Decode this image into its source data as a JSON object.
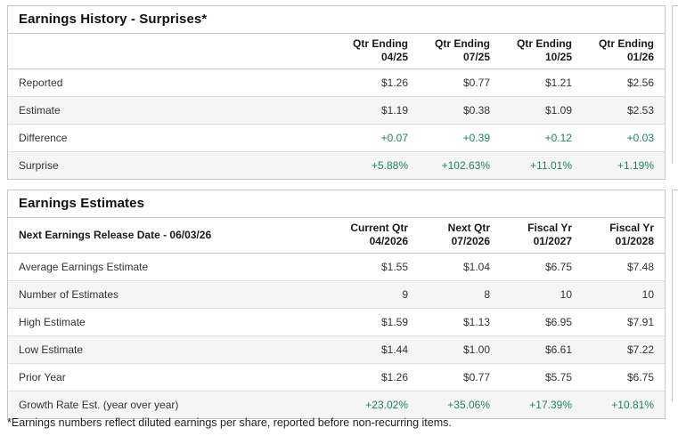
{
  "page": {
    "footnote": "*Earnings numbers reflect diluted earnings per share, reported before non-recurring items."
  },
  "colors": {
    "positive_text": "#1b8265",
    "stripe_background": "#f5f5f5",
    "panel_border": "#c6c6c6"
  },
  "history": {
    "title": "Earnings History - Surprises*",
    "columns": [
      {
        "line1": "Qtr Ending",
        "line2": "04/25"
      },
      {
        "line1": "Qtr Ending",
        "line2": "07/25"
      },
      {
        "line1": "Qtr Ending",
        "line2": "10/25"
      },
      {
        "line1": "Qtr Ending",
        "line2": "01/26"
      }
    ],
    "rows": [
      {
        "label": "Reported",
        "values": [
          "$1.26",
          "$0.77",
          "$1.21",
          "$2.56"
        ],
        "positive": false
      },
      {
        "label": "Estimate",
        "values": [
          "$1.19",
          "$0.38",
          "$1.09",
          "$2.53"
        ],
        "positive": false
      },
      {
        "label": "Difference",
        "values": [
          "+0.07",
          "+0.39",
          "+0.12",
          "+0.03"
        ],
        "positive": true
      },
      {
        "label": "Surprise",
        "values": [
          "+5.88%",
          "+102.63%",
          "+11.01%",
          "+1.19%"
        ],
        "positive": true
      }
    ]
  },
  "estimates": {
    "title": "Earnings Estimates",
    "release_label": "Next Earnings Release Date - 06/03/26",
    "columns": [
      {
        "line1": "Current Qtr",
        "line2": "04/2026"
      },
      {
        "line1": "Next Qtr",
        "line2": "07/2026"
      },
      {
        "line1": "Fiscal Yr",
        "line2": "01/2027"
      },
      {
        "line1": "Fiscal Yr",
        "line2": "01/2028"
      }
    ],
    "rows": [
      {
        "label": "Average Earnings Estimate",
        "values": [
          "$1.55",
          "$1.04",
          "$6.75",
          "$7.48"
        ],
        "positive": false
      },
      {
        "label": "Number of Estimates",
        "values": [
          "9",
          "8",
          "10",
          "10"
        ],
        "positive": false
      },
      {
        "label": "High Estimate",
        "values": [
          "$1.59",
          "$1.13",
          "$6.95",
          "$7.91"
        ],
        "positive": false
      },
      {
        "label": "Low Estimate",
        "values": [
          "$1.44",
          "$1.00",
          "$6.61",
          "$7.22"
        ],
        "positive": false
      },
      {
        "label": "Prior Year",
        "values": [
          "$1.26",
          "$0.77",
          "$5.75",
          "$6.75"
        ],
        "positive": false
      },
      {
        "label": "Growth Rate Est. (year over year)",
        "values": [
          "+23.02%",
          "+35.06%",
          "+17.39%",
          "+10.81%"
        ],
        "positive": true
      }
    ]
  }
}
